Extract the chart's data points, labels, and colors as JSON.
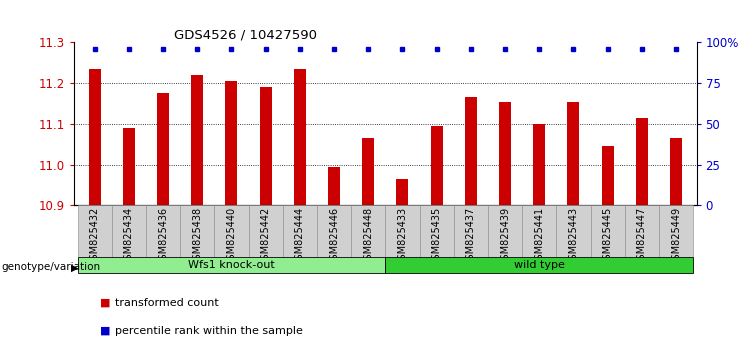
{
  "title": "GDS4526 / 10427590",
  "samples": [
    "GSM825432",
    "GSM825434",
    "GSM825436",
    "GSM825438",
    "GSM825440",
    "GSM825442",
    "GSM825444",
    "GSM825446",
    "GSM825448",
    "GSM825433",
    "GSM825435",
    "GSM825437",
    "GSM825439",
    "GSM825441",
    "GSM825443",
    "GSM825445",
    "GSM825447",
    "GSM825449"
  ],
  "values": [
    11.235,
    11.09,
    11.175,
    11.22,
    11.205,
    11.19,
    11.235,
    10.995,
    11.065,
    10.965,
    11.095,
    11.165,
    11.155,
    11.1,
    11.155,
    11.045,
    11.115,
    11.065
  ],
  "groups": [
    {
      "label": "Wfs1 knock-out",
      "start": 0,
      "end": 9,
      "color": "#90EE90"
    },
    {
      "label": "wild type",
      "start": 9,
      "end": 18,
      "color": "#32CD32"
    }
  ],
  "ylim": [
    10.9,
    11.3
  ],
  "yticks": [
    10.9,
    11.0,
    11.1,
    11.2,
    11.3
  ],
  "right_yticks": [
    0,
    25,
    50,
    75,
    100
  ],
  "right_ylabels": [
    "0",
    "25",
    "50",
    "75",
    "100%"
  ],
  "bar_color": "#CC0000",
  "dot_color": "#0000CC",
  "bar_width": 0.35,
  "grid_color": "#000000",
  "left_label_color": "#CC0000",
  "right_label_color": "#0000CC",
  "genotype_label": "genotype/variation",
  "legend_items": [
    "transformed count",
    "percentile rank within the sample"
  ],
  "legend_colors": [
    "#CC0000",
    "#0000CC"
  ]
}
